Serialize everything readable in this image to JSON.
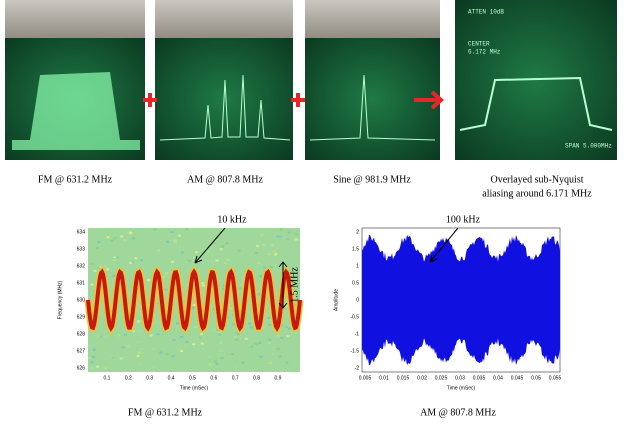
{
  "top_row": {
    "captions": [
      "FM @ 631.2 MHz",
      "AM @ 807.8 MHz",
      "Sine @ 981.9 MHz",
      "Overlayed sub-Nyquist",
      "aliasing around 6.171 MHz"
    ],
    "screen_text": {
      "atten": "ATTEN 10dB",
      "center": "CENTER",
      "center_freq": "6.172 MHz",
      "span": "SPAN 5.000MHz"
    }
  },
  "fm_plot": {
    "caption": "FM @ 631.2 MHz",
    "ylabel": "Frequency (MHz)",
    "xlabel": "Time (mSec)",
    "yticks": [
      "634",
      "633",
      "632",
      "631",
      "630",
      "629",
      "628",
      "627",
      "626"
    ],
    "xticks": [
      "0.1",
      "0.2",
      "0.3",
      "0.4",
      "0.5",
      "0.6",
      "0.7",
      "0.8",
      "0.9"
    ],
    "annotation": "10 kHz",
    "span_label": "1.5 MHz"
  },
  "am_plot": {
    "caption": "AM @ 807.8 MHz",
    "ylabel": "Amplitude",
    "xlabel": "Time (mSec)",
    "yticks": [
      "2",
      "1.5",
      "1",
      "0.5",
      "0",
      "-0.5",
      "-1",
      "-1.5",
      "-2"
    ],
    "xticks": [
      "0.005",
      "0.01",
      "0.015",
      "0.02",
      "0.025",
      "0.03",
      "0.035",
      "0.04",
      "0.045",
      "0.05",
      "0.055"
    ],
    "annotation": "100 kHz"
  }
}
